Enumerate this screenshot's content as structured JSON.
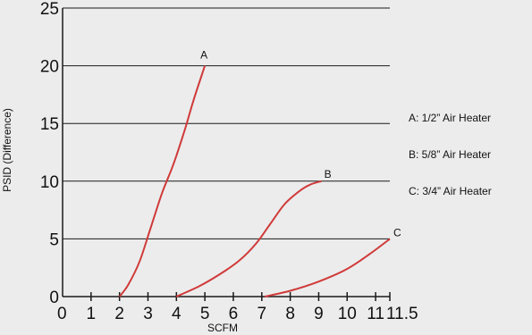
{
  "chart_data": {
    "type": "line",
    "xlabel": "SCFM",
    "ylabel": "PSID (Difference)",
    "xlim": [
      0,
      11.5
    ],
    "ylim": [
      0,
      25
    ],
    "x_ticks": [
      "0",
      "1",
      "2",
      "3",
      "4",
      "5",
      "6",
      "7",
      "8",
      "9",
      "10",
      "11",
      "11.5"
    ],
    "y_ticks": [
      "0",
      "5",
      "10",
      "15",
      "20",
      "25"
    ],
    "grid": "horizontal",
    "line_color": "#d03a3a",
    "series": [
      {
        "name": "A",
        "points": [
          [
            2,
            0
          ],
          [
            2.3,
            1
          ],
          [
            2.7,
            3
          ],
          [
            3.1,
            6
          ],
          [
            3.5,
            9
          ],
          [
            3.9,
            11.5
          ],
          [
            4.3,
            14.5
          ],
          [
            4.6,
            17
          ],
          [
            5,
            20
          ]
        ]
      },
      {
        "name": "B",
        "points": [
          [
            4,
            0
          ],
          [
            4.8,
            0.9
          ],
          [
            5.5,
            1.9
          ],
          [
            6.2,
            3.1
          ],
          [
            6.8,
            4.6
          ],
          [
            7.3,
            6.3
          ],
          [
            7.8,
            8
          ],
          [
            8.3,
            9.1
          ],
          [
            8.7,
            9.7
          ],
          [
            9.1,
            10
          ]
        ]
      },
      {
        "name": "C",
        "points": [
          [
            7.1,
            0
          ],
          [
            8,
            0.5
          ],
          [
            9,
            1.3
          ],
          [
            10,
            2.4
          ],
          [
            10.8,
            3.7
          ],
          [
            11.5,
            5
          ]
        ]
      }
    ],
    "legend": {
      "placement": "right",
      "entries": [
        "A: 1/2” Air Heater",
        "B: 5/8” Air Heater",
        "C: 3/4” Air Heater"
      ]
    }
  }
}
